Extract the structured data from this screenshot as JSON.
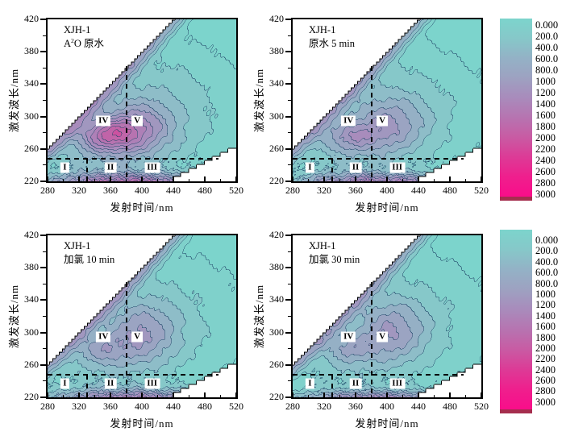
{
  "figure": {
    "background": "#ffffff"
  },
  "axis": {
    "xlabel": "发射时间/nm",
    "ylabel": "激发波长/nm",
    "xlim": [
      280,
      520
    ],
    "ylim": [
      220,
      420
    ],
    "x_ticks_major": [
      280,
      320,
      360,
      400,
      440,
      480,
      520
    ],
    "x_ticks_minor": [
      300,
      340,
      380,
      420,
      460,
      500
    ],
    "y_ticks_major": [
      220,
      260,
      300,
      340,
      380,
      420
    ],
    "y_ticks_minor": [
      240,
      280,
      320,
      360,
      400
    ]
  },
  "colorbar": {
    "labels": [
      "0.000",
      "200.0",
      "400.0",
      "600.0",
      "800.0",
      "1000",
      "1200",
      "1400",
      "1600",
      "1800",
      "2000",
      "2200",
      "2400",
      "2600",
      "2800",
      "3000"
    ],
    "gradient_stops": [
      "#7cd4cc",
      "#86c8c9",
      "#93b2c6",
      "#9da2c1",
      "#a88cbc",
      "#b773b0",
      "#c95aa3",
      "#dd3a96",
      "#ef1f8d",
      "#f90d8a"
    ],
    "strip_color": "#a52e4e"
  },
  "chart_data": {
    "type": "contour",
    "note": "2x2 EEM fluorescence contour panels, shared axes and colorbar scale 0-3000",
    "levels": {
      "min": 0,
      "max": 3000,
      "step": 200
    },
    "band_colors": [
      "#7cd4cc",
      "#7fd1cb",
      "#86c8c9",
      "#8ebdc8",
      "#95b0c5",
      "#9ba4c2",
      "#a197bf",
      "#a88cbc",
      "#ae80b7",
      "#b773b0",
      "#c164a8",
      "#cd52a0",
      "#da4098",
      "#e62e91",
      "#f01c8d",
      "#f70f8b"
    ],
    "contour_line_color": "#22486a",
    "regions": [
      {
        "label": "I",
        "em": 302,
        "ex": 237
      },
      {
        "label": "II",
        "em": 360,
        "ex": 237
      },
      {
        "label": "III",
        "em": 413,
        "ex": 237
      },
      {
        "label": "IV",
        "em": 351,
        "ex": 295
      },
      {
        "label": "V",
        "em": 394,
        "ex": 295
      }
    ],
    "dividers": {
      "horizontal_ex": 248,
      "vertical_em_full": 380,
      "vertical_em_low": 330,
      "vertical_full_top_ex": 362,
      "horizontal_end_em": 497
    },
    "boundaries": {
      "rayleigh_offset": 22,
      "second_order_factor": 2
    },
    "panels": [
      {
        "id": "top-left",
        "title": "XJH-1",
        "subtitle_html": "A<sup>2</sup>O 原水",
        "seed": 1,
        "peaks": [
          [
            356,
            277,
            26,
            14,
            1150
          ],
          [
            397,
            286,
            30,
            22,
            820
          ],
          [
            400,
            305,
            95,
            66,
            620
          ],
          [
            340,
            250,
            50,
            24,
            360
          ]
        ],
        "bottom_band": {
          "em": 385,
          "sem": 80,
          "ex": 215,
          "sex": 10,
          "amp": 1750
        },
        "diag_ridge": {
          "amp": 820,
          "w": 11
        }
      },
      {
        "id": "top-right",
        "title": "XJH-1",
        "subtitle_html": "原水 5 min",
        "seed": 2,
        "peaks": [
          [
            352,
            276,
            24,
            13,
            620
          ],
          [
            403,
            289,
            32,
            24,
            700
          ],
          [
            402,
            306,
            95,
            64,
            550
          ],
          [
            340,
            251,
            48,
            24,
            300
          ]
        ],
        "bottom_band": {
          "em": 390,
          "sem": 80,
          "ex": 215,
          "sex": 10,
          "amp": 1600
        },
        "diag_ridge": {
          "amp": 780,
          "w": 11
        }
      },
      {
        "id": "bottom-left",
        "title": "XJH-1",
        "subtitle_html": "加氯 10 min",
        "seed": 3,
        "peaks": [
          [
            348,
            280,
            22,
            13,
            540
          ],
          [
            401,
            298,
            30,
            26,
            720
          ],
          [
            406,
            312,
            95,
            66,
            530
          ],
          [
            338,
            252,
            48,
            24,
            280
          ]
        ],
        "bottom_band": {
          "em": 390,
          "sem": 85,
          "ex": 215,
          "sex": 10,
          "amp": 1550
        },
        "diag_ridge": {
          "amp": 780,
          "w": 11
        }
      },
      {
        "id": "bottom-right",
        "title": "XJH-1",
        "subtitle_html": "加氯 30 min",
        "seed": 4,
        "peaks": [
          [
            350,
            281,
            22,
            13,
            520
          ],
          [
            406,
            301,
            30,
            26,
            730
          ],
          [
            409,
            313,
            95,
            66,
            510
          ],
          [
            338,
            252,
            48,
            24,
            260
          ]
        ],
        "bottom_band": {
          "em": 392,
          "sem": 85,
          "ex": 215,
          "sex": 9,
          "amp": 1450
        },
        "diag_ridge": {
          "amp": 760,
          "w": 11
        }
      }
    ]
  }
}
